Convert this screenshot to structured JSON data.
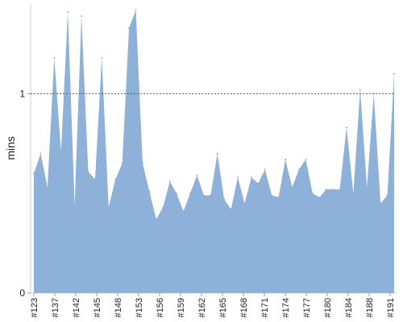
{
  "chart_data": {
    "type": "area",
    "title": "",
    "xlabel": "",
    "ylabel": "mins",
    "ylim": [
      0,
      1.45
    ],
    "yticks": [
      0,
      1
    ],
    "reference_line": {
      "value": 1,
      "style": "dashed"
    },
    "x_tick_labels": [
      "#123",
      "#137",
      "#142",
      "#145",
      "#148",
      "#153",
      "#156",
      "#159",
      "#162",
      "#165",
      "#168",
      "#171",
      "#174",
      "#177",
      "#180",
      "#184",
      "#188",
      "#191"
    ],
    "series": [
      {
        "color": "#8eb1da",
        "values": [
          0.6,
          0.7,
          0.53,
          1.18,
          0.71,
          1.41,
          0.44,
          1.39,
          0.61,
          0.57,
          1.18,
          0.43,
          0.57,
          0.65,
          1.33,
          1.42,
          0.65,
          0.51,
          0.37,
          0.43,
          0.56,
          0.5,
          0.41,
          0.5,
          0.59,
          0.49,
          0.49,
          0.7,
          0.47,
          0.42,
          0.58,
          0.45,
          0.58,
          0.55,
          0.62,
          0.49,
          0.48,
          0.67,
          0.53,
          0.62,
          0.67,
          0.5,
          0.48,
          0.52,
          0.52,
          0.52,
          0.83,
          0.5,
          1.02,
          0.53,
          1.0,
          0.45,
          0.49,
          1.1
        ]
      }
    ]
  }
}
